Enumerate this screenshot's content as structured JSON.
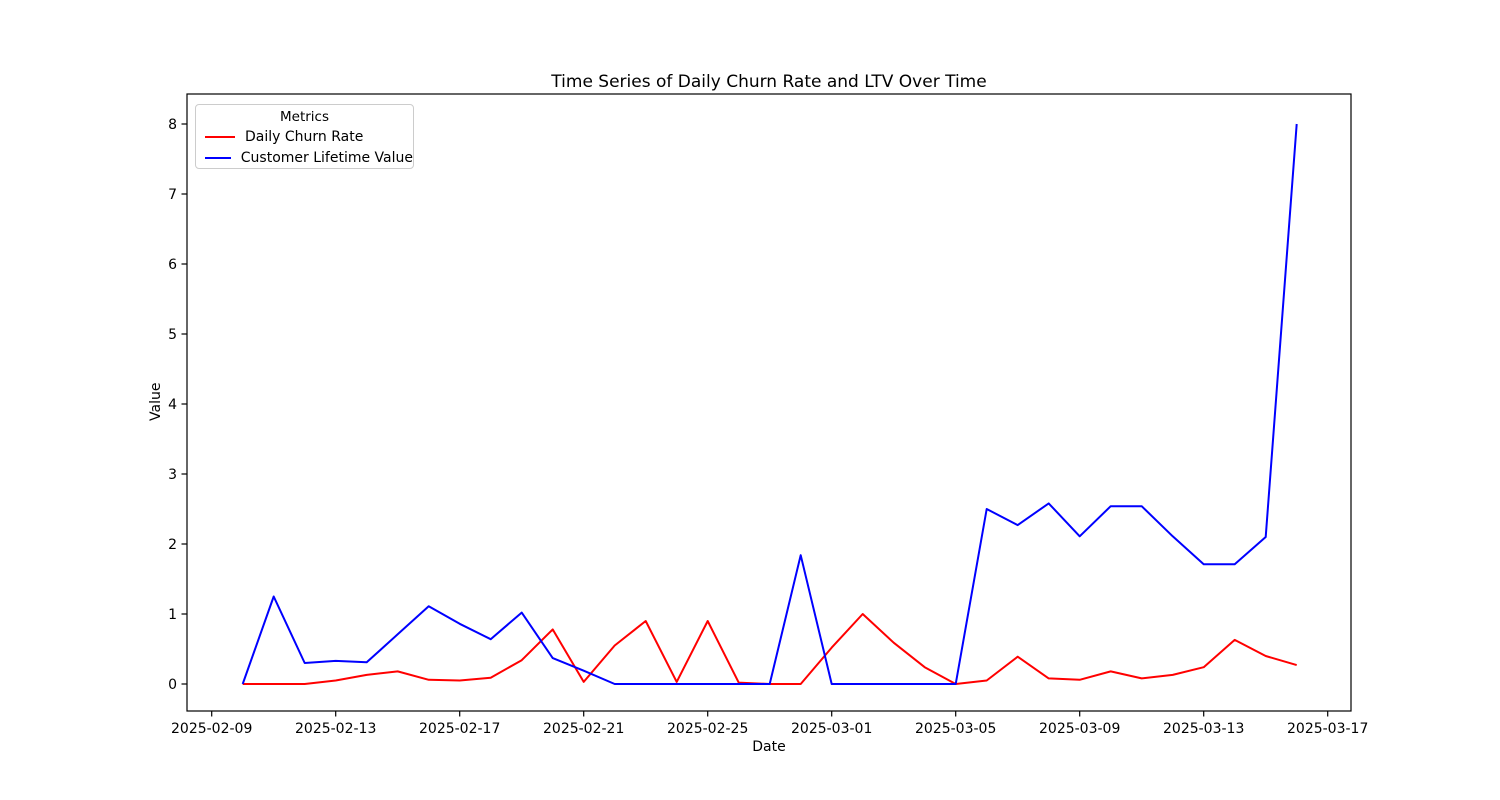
{
  "chart_data": {
    "type": "line",
    "title": "Time Series of Daily Churn Rate and LTV Over Time",
    "xlabel": "Date",
    "ylabel": "Value",
    "grid": false,
    "legend": {
      "title": "Metrics",
      "position": "upper left"
    },
    "x": [
      "2025-02-10",
      "2025-02-11",
      "2025-02-12",
      "2025-02-13",
      "2025-02-14",
      "2025-02-15",
      "2025-02-16",
      "2025-02-17",
      "2025-02-18",
      "2025-02-19",
      "2025-02-20",
      "2025-02-21",
      "2025-02-22",
      "2025-02-23",
      "2025-02-24",
      "2025-02-25",
      "2025-02-26",
      "2025-02-27",
      "2025-02-28",
      "2025-03-01",
      "2025-03-02",
      "2025-03-03",
      "2025-03-04",
      "2025-03-05",
      "2025-03-06",
      "2025-03-07",
      "2025-03-08",
      "2025-03-09",
      "2025-03-10",
      "2025-03-11",
      "2025-03-12",
      "2025-03-13",
      "2025-03-14",
      "2025-03-15",
      "2025-03-16"
    ],
    "series": [
      {
        "name": "Daily Churn Rate",
        "color": "#ff0000",
        "values": [
          0.0,
          0.0,
          0.0,
          0.05,
          0.13,
          0.18,
          0.06,
          0.05,
          0.09,
          0.34,
          0.78,
          0.03,
          0.55,
          0.9,
          0.03,
          0.9,
          0.02,
          0.0,
          0.0,
          0.52,
          1.0,
          0.59,
          0.24,
          0.0,
          0.05,
          0.39,
          0.08,
          0.06,
          0.18,
          0.08,
          0.13,
          0.24,
          0.63,
          0.4,
          0.27
        ]
      },
      {
        "name": "Customer Lifetime Value",
        "color": "#0000ff",
        "values": [
          0.0,
          1.25,
          0.3,
          0.33,
          0.31,
          0.71,
          1.11,
          0.86,
          0.64,
          1.02,
          0.37,
          0.19,
          0.0,
          0.0,
          0.0,
          0.0,
          0.0,
          0.0,
          1.84,
          0.0,
          0.0,
          0.0,
          0.0,
          0.0,
          2.5,
          2.27,
          2.58,
          2.11,
          2.54,
          2.54,
          2.11,
          1.71,
          1.71,
          2.1,
          8.0
        ]
      }
    ],
    "x_tick_labels": [
      "2025-02-09",
      "2025-02-13",
      "2025-02-17",
      "2025-02-21",
      "2025-02-25",
      "2025-03-01",
      "2025-03-05",
      "2025-03-09",
      "2025-03-13",
      "2025-03-17"
    ],
    "y_ticks": [
      0,
      1,
      2,
      3,
      4,
      5,
      6,
      7,
      8
    ],
    "ylim": [
      -0.39,
      8.43
    ],
    "axis_color": "#000000"
  }
}
